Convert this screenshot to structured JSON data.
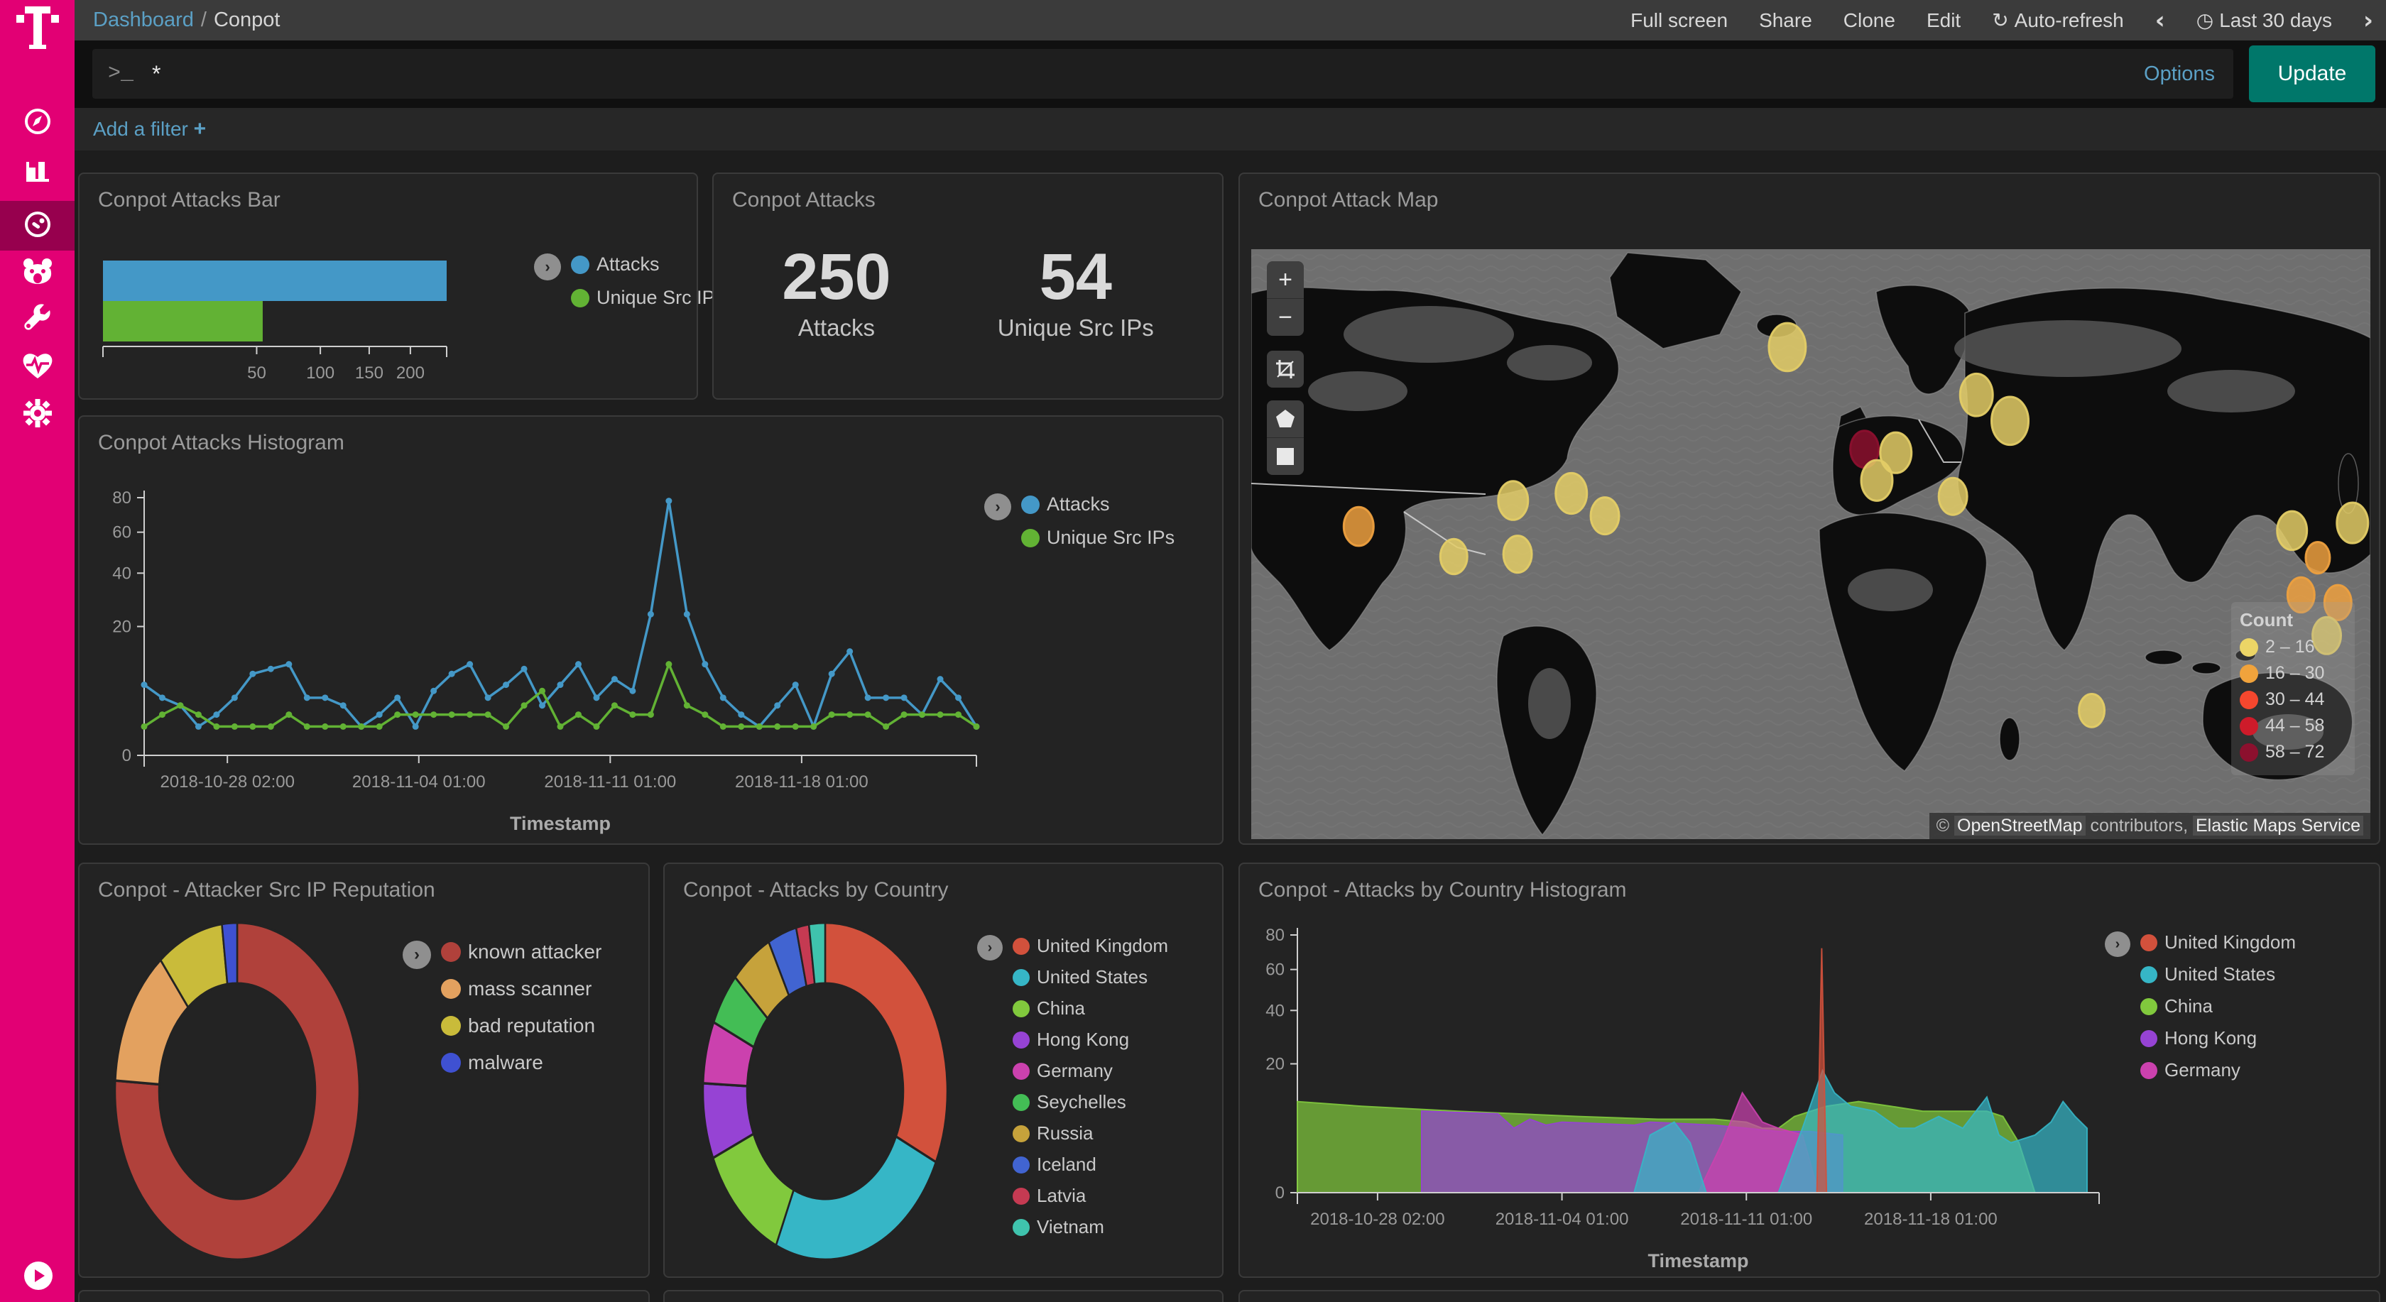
{
  "sidebar": {
    "logo": "T",
    "items": [
      {
        "icon": "discover-compass-icon"
      },
      {
        "icon": "visualize-bar-chart-icon"
      },
      {
        "icon": "dashboard-gauge-icon",
        "active": true
      },
      {
        "icon": "bear-icon"
      },
      {
        "icon": "dev-tools-wrench-icon"
      },
      {
        "icon": "monitoring-heartbeat-icon"
      },
      {
        "icon": "management-gear-icon"
      }
    ],
    "play_button": "play-icon",
    "magenta": "#e20074",
    "active_bg": "#97004e"
  },
  "topbar": {
    "breadcrumb": {
      "root": "Dashboard",
      "sep": "/",
      "current": "Conpot"
    },
    "menu": [
      {
        "label": "Full screen"
      },
      {
        "label": "Share"
      },
      {
        "label": "Clone"
      },
      {
        "label": "Edit"
      },
      {
        "label": "Auto-refresh",
        "icon": "refresh-icon",
        "glyph": "↻"
      },
      {
        "label": "",
        "icon": "chevron-left-icon",
        "glyph": "‹"
      },
      {
        "label": "Last 30 days",
        "icon": "clock-icon",
        "glyph": "◷"
      },
      {
        "label": "",
        "icon": "chevron-right-icon",
        "glyph": "›"
      }
    ]
  },
  "querybar": {
    "prompt": ">_",
    "value": "*",
    "options_label": "Options",
    "update_label": "Update",
    "update_color": "#00776a"
  },
  "filterbar": {
    "add_filter_label": "Add a filter",
    "plus": "+"
  },
  "panels": {
    "bar": {
      "title": "Conpot Attacks Bar"
    },
    "metric": {
      "title": "Conpot Attacks"
    },
    "map": {
      "title": "Conpot Attack Map"
    },
    "histogram": {
      "title": "Conpot Attacks Histogram"
    },
    "reputation": {
      "title": "Conpot - Attacker Src IP Reputation"
    },
    "country": {
      "title": "Conpot - Attacks by Country"
    },
    "country_histogram": {
      "title": "Conpot - Attacks by Country Histogram"
    }
  },
  "chart_data": {
    "attacks_bar": {
      "type": "bar",
      "orientation": "horizontal",
      "scale": "squareroot",
      "series": [
        {
          "name": "Attacks",
          "color": "#4498c7",
          "value": 250
        },
        {
          "name": "Unique Src IPs",
          "color": "#62b234",
          "value": 54
        }
      ],
      "xticks": [
        50,
        100,
        150,
        200
      ],
      "xlim": [
        0,
        250
      ],
      "legend_position": "right"
    },
    "attacks_metric": {
      "type": "metric",
      "metrics": [
        {
          "value": "250",
          "label": "Attacks"
        },
        {
          "value": "54",
          "label": "Unique Src IPs"
        }
      ]
    },
    "attacks_histogram": {
      "type": "line",
      "scale": "squareroot",
      "title": "Conpot Attacks Histogram",
      "xlabel": "Timestamp",
      "ylim": [
        0,
        80
      ],
      "yticks": [
        0,
        20,
        40,
        60,
        80
      ],
      "xticks": [
        {
          "f": 0.1,
          "label": "2018-10-28 02:00"
        },
        {
          "f": 0.33,
          "label": "2018-11-04 01:00"
        },
        {
          "f": 0.56,
          "label": "2018-11-11 01:00"
        },
        {
          "f": 0.79,
          "label": "2018-11-18 01:00"
        }
      ],
      "series": [
        {
          "name": "Attacks",
          "color": "#4498c7",
          "values": [
            6,
            4,
            3,
            1,
            2,
            4,
            8,
            9,
            10,
            4,
            4,
            3,
            1,
            2,
            4,
            1,
            5,
            8,
            10,
            4,
            6,
            9,
            3,
            6,
            10,
            4,
            7,
            5,
            24,
            78,
            24,
            10,
            4,
            2,
            1,
            3,
            6,
            1,
            8,
            13,
            4,
            4,
            4,
            2,
            7,
            4,
            1
          ]
        },
        {
          "name": "Unique Src IPs",
          "color": "#62b234",
          "values": [
            1,
            2,
            3,
            2,
            1,
            1,
            1,
            1,
            2,
            1,
            1,
            1,
            1,
            1,
            2,
            2,
            2,
            2,
            2,
            2,
            1,
            3,
            5,
            1,
            2,
            1,
            3,
            2,
            2,
            10,
            3,
            2,
            1,
            1,
            1,
            1,
            1,
            1,
            2,
            2,
            2,
            1,
            2,
            2,
            2,
            2,
            1
          ]
        }
      ],
      "legend_position": "right"
    },
    "attack_map": {
      "type": "coordinate_map",
      "legend_title": "Count",
      "legend": [
        {
          "range": "2 – 16",
          "color": "#ecd566"
        },
        {
          "range": "16 – 30",
          "color": "#f0a33c"
        },
        {
          "range": "30 – 44",
          "color": "#f5472e"
        },
        {
          "range": "44 – 58",
          "color": "#ce1b2a"
        },
        {
          "range": "58 – 72",
          "color": "#8c102e"
        }
      ],
      "attribution": {
        "copyright": "©",
        "osm": "OpenStreetMap",
        "mid": "contributors,",
        "ems": "Elastic Maps Service"
      },
      "controls": [
        "zoom-in",
        "zoom-out",
        "fit-bounds",
        "draw-polygon",
        "draw-rectangle"
      ],
      "markers": [
        {
          "x": 9.6,
          "y": 47.0,
          "r": 21,
          "bucket": "16-30"
        },
        {
          "x": 18.1,
          "y": 52.1,
          "r": 19,
          "bucket": "2-16"
        },
        {
          "x": 23.4,
          "y": 42.6,
          "r": 21,
          "bucket": "2-16"
        },
        {
          "x": 23.8,
          "y": 51.7,
          "r": 20,
          "bucket": "2-16"
        },
        {
          "x": 28.6,
          "y": 41.4,
          "r": 22,
          "bucket": "2-16"
        },
        {
          "x": 31.6,
          "y": 45.2,
          "r": 20,
          "bucket": "2-16"
        },
        {
          "x": 47.9,
          "y": 16.6,
          "r": 26,
          "bucket": "2-16"
        },
        {
          "x": 64.8,
          "y": 24.7,
          "r": 23,
          "bucket": "2-16"
        },
        {
          "x": 67.8,
          "y": 29.1,
          "r": 26,
          "bucket": "2-16"
        },
        {
          "x": 54.8,
          "y": 33.9,
          "r": 20,
          "bucket": "58-72"
        },
        {
          "x": 57.6,
          "y": 34.5,
          "r": 22,
          "bucket": "2-16"
        },
        {
          "x": 55.9,
          "y": 39.2,
          "r": 22,
          "bucket": "2-16"
        },
        {
          "x": 62.7,
          "y": 41.9,
          "r": 20,
          "bucket": "2-16"
        },
        {
          "x": 75.1,
          "y": 78.2,
          "r": 18,
          "bucket": "2-16"
        },
        {
          "x": 93.0,
          "y": 47.7,
          "r": 21,
          "bucket": "2-16"
        },
        {
          "x": 93.8,
          "y": 58.6,
          "r": 19,
          "bucket": "16-30"
        },
        {
          "x": 95.3,
          "y": 52.3,
          "r": 17,
          "bucket": "16-30"
        },
        {
          "x": 97.1,
          "y": 59.9,
          "r": 19,
          "bucket": "16-30"
        },
        {
          "x": 98.4,
          "y": 46.4,
          "r": 22,
          "bucket": "2-16"
        },
        {
          "x": 96.1,
          "y": 65.5,
          "r": 20,
          "bucket": "2-16"
        }
      ],
      "bucket_colors": {
        "2-16": "#e3cc66",
        "16-30": "#eda03f",
        "30-44": "#f5472e",
        "44-58": "#ce1b2a",
        "58-72": "#8c102e"
      }
    },
    "reputation_donut": {
      "type": "pie",
      "donut": true,
      "slices": [
        {
          "name": "known attacker",
          "color": "#b0413b",
          "value": 190
        },
        {
          "name": "mass scanner",
          "color": "#e3a15f",
          "value": 33
        },
        {
          "name": "bad reputation",
          "color": "#c9bb3a",
          "value": 22
        },
        {
          "name": "malware",
          "color": "#3f51d2",
          "value": 5
        }
      ],
      "legend_position": "right"
    },
    "country_donut": {
      "type": "pie",
      "donut": true,
      "slices": [
        {
          "name": "United Kingdom",
          "color": "#d2513c",
          "value": 75
        },
        {
          "name": "United States",
          "color": "#36b6c6",
          "value": 58
        },
        {
          "name": "China",
          "color": "#81c93d",
          "value": 28
        },
        {
          "name": "Hong Kong",
          "color": "#9643d4",
          "value": 17
        },
        {
          "name": "Germany",
          "color": "#cb41ae",
          "value": 14
        },
        {
          "name": "Seychelles",
          "color": "#43bd55",
          "value": 12
        },
        {
          "name": "Russia",
          "color": "#c6a23b",
          "value": 13
        },
        {
          "name": "Iceland",
          "color": "#4164d1",
          "value": 9
        },
        {
          "name": "Latvia",
          "color": "#c53a52",
          "value": 4
        },
        {
          "name": "Vietnam",
          "color": "#3fc3ad",
          "value": 5
        }
      ],
      "legend_position": "right"
    },
    "country_histogram": {
      "type": "area",
      "scale": "squareroot",
      "xlabel": "Timestamp",
      "ylim": [
        0,
        80
      ],
      "yticks": [
        0,
        20,
        40,
        60,
        80
      ],
      "xticks": [
        {
          "f": 0.1,
          "label": "2018-10-28 02:00"
        },
        {
          "f": 0.33,
          "label": "2018-11-04 01:00"
        },
        {
          "f": 0.56,
          "label": "2018-11-11 01:00"
        },
        {
          "f": 0.79,
          "label": "2018-11-18 01:00"
        }
      ],
      "series": [
        {
          "name": "China",
          "color": "#81c93d",
          "pts": [
            [
              0,
              10
            ],
            [
              0.08,
              9
            ],
            [
              0.2,
              8
            ],
            [
              0.35,
              7
            ],
            [
              0.45,
              6.5
            ],
            [
              0.52,
              6.5
            ],
            [
              0.56,
              6
            ],
            [
              0.58,
              5
            ],
            [
              0.6,
              5
            ],
            [
              0.62,
              7
            ],
            [
              0.66,
              9
            ],
            [
              0.7,
              10
            ],
            [
              0.74,
              9
            ],
            [
              0.78,
              8
            ],
            [
              0.82,
              8
            ],
            [
              0.86,
              8
            ],
            [
              0.88,
              7
            ],
            [
              0.9,
              3
            ],
            [
              0.92,
              0
            ]
          ]
        },
        {
          "name": "Hong Kong",
          "color": "#9643d4",
          "pts": [
            [
              0.155,
              8
            ],
            [
              0.25,
              7.5
            ],
            [
              0.27,
              5
            ],
            [
              0.29,
              6.5
            ],
            [
              0.31,
              5.5
            ],
            [
              0.33,
              6
            ],
            [
              0.42,
              5.5
            ],
            [
              0.44,
              6
            ],
            [
              0.52,
              5.5
            ],
            [
              0.56,
              5
            ],
            [
              0.6,
              4.5
            ],
            [
              0.64,
              4.5
            ],
            [
              0.68,
              4
            ]
          ]
        },
        {
          "name": "Germany",
          "color": "#cb41ae",
          "pts": [
            [
              0.5,
              0
            ],
            [
              0.53,
              3
            ],
            [
              0.555,
              12
            ],
            [
              0.58,
              6
            ],
            [
              0.6,
              5
            ],
            [
              0.63,
              4
            ],
            [
              0.65,
              0
            ]
          ]
        },
        {
          "name": "United States",
          "color": "#36b6c6",
          "pts": [
            [
              0.42,
              0
            ],
            [
              0.44,
              4
            ],
            [
              0.47,
              6
            ],
            [
              0.49,
              3
            ],
            [
              0.51,
              0
            ],
            [
              0.6,
              0
            ],
            [
              0.63,
              5
            ],
            [
              0.655,
              18
            ],
            [
              0.67,
              12
            ],
            [
              0.69,
              9
            ],
            [
              0.72,
              8
            ],
            [
              0.75,
              5
            ],
            [
              0.77,
              5
            ],
            [
              0.8,
              7
            ],
            [
              0.83,
              5
            ],
            [
              0.86,
              11
            ],
            [
              0.875,
              4
            ],
            [
              0.89,
              3
            ],
            [
              0.92,
              4
            ],
            [
              0.94,
              6
            ],
            [
              0.955,
              10
            ],
            [
              0.97,
              7
            ],
            [
              0.985,
              5
            ]
          ]
        },
        {
          "name": "United Kingdom",
          "color": "#d2513c",
          "pts": [
            [
              0.648,
              0
            ],
            [
              0.654,
              72
            ],
            [
              0.66,
              0
            ]
          ]
        }
      ],
      "legend": [
        "United Kingdom",
        "United States",
        "China",
        "Hong Kong",
        "Germany"
      ],
      "legend_colors": [
        "#d2513c",
        "#36b6c6",
        "#81c93d",
        "#9643d4",
        "#cb41ae"
      ],
      "legend_position": "right"
    }
  }
}
